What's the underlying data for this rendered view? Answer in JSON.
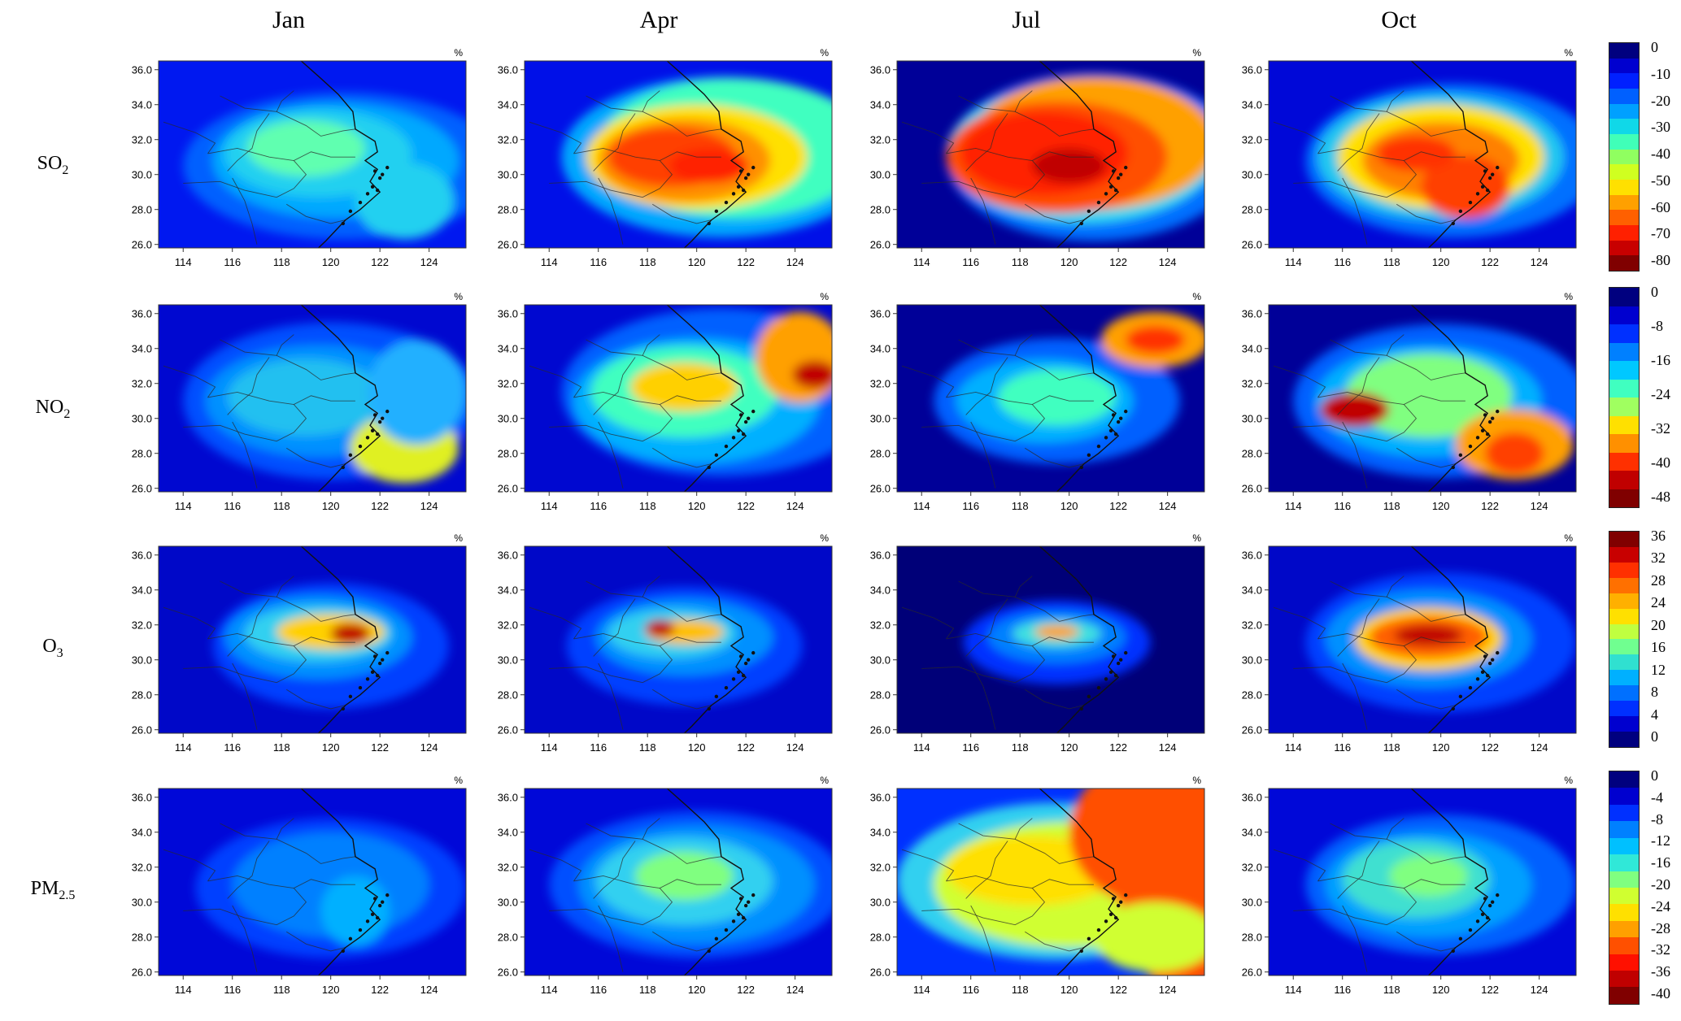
{
  "columns": [
    "Jan",
    "Apr",
    "Jul",
    "Oct"
  ],
  "rows": [
    {
      "name": "SO",
      "sub": "2"
    },
    {
      "name": "NO",
      "sub": "2"
    },
    {
      "name": "O",
      "sub": "3"
    },
    {
      "name": "PM",
      "sub": "2.5"
    }
  ],
  "unit": "%",
  "axes": {
    "x_ticks": [
      "114",
      "116",
      "118",
      "120",
      "122",
      "124"
    ],
    "y_ticks": [
      "36.0",
      "34.0",
      "32.0",
      "30.0",
      "28.0",
      "26.0"
    ],
    "x_range": [
      113,
      125.5
    ],
    "y_range": [
      25.8,
      36.5
    ]
  },
  "colorbars": [
    {
      "labels": [
        "0",
        "-10",
        "-20",
        "-30",
        "-40",
        "-50",
        "-60",
        "-70",
        "-80"
      ],
      "colors": [
        "#00007f",
        "#0000cf",
        "#0020ff",
        "#0060ff",
        "#00a0ff",
        "#10d8e8",
        "#40ffb8",
        "#90ff60",
        "#d0ff20",
        "#ffe000",
        "#ffa000",
        "#ff6000",
        "#ff2000",
        "#c80000",
        "#800000"
      ]
    },
    {
      "labels": [
        "0",
        "-8",
        "-16",
        "-24",
        "-32",
        "-40",
        "-48"
      ],
      "colors": [
        "#00007f",
        "#0000cf",
        "#0030ff",
        "#0080ff",
        "#00c8ff",
        "#40ffc0",
        "#a0ff60",
        "#ffe000",
        "#ff9000",
        "#ff3000",
        "#c00000",
        "#800000"
      ]
    },
    {
      "labels": [
        "36",
        "32",
        "28",
        "24",
        "20",
        "16",
        "12",
        "8",
        "4",
        "0"
      ],
      "colors": [
        "#800000",
        "#c80000",
        "#ff3000",
        "#ff7000",
        "#ffb000",
        "#ffe000",
        "#c0ff40",
        "#70ff90",
        "#30e0d0",
        "#00b0ff",
        "#0070ff",
        "#0030ff",
        "#0000cf",
        "#00007f"
      ]
    },
    {
      "labels": [
        "0",
        "-4",
        "-8",
        "-12",
        "-16",
        "-20",
        "-24",
        "-28",
        "-32",
        "-36",
        "-40"
      ],
      "colors": [
        "#00007f",
        "#0000cf",
        "#0030ff",
        "#0080ff",
        "#00c0ff",
        "#30e8d8",
        "#80ff80",
        "#d0ff30",
        "#ffe000",
        "#ffa000",
        "#ff5000",
        "#ff1000",
        "#c00000",
        "#800000"
      ]
    }
  ],
  "fields": [
    [
      {
        "bg": "#0018f0",
        "blobs": [
          [
            120.5,
            30.5,
            6.5,
            4.2,
            "#0060ff"
          ],
          [
            120.2,
            30.8,
            5,
            3.3,
            "#00a8ff"
          ],
          [
            119.5,
            31.2,
            3.8,
            2.5,
            "#20d0f0"
          ],
          [
            119,
            31.5,
            2.4,
            1.6,
            "#60ffb0"
          ],
          [
            123,
            28.5,
            2,
            2.2,
            "#20d0f0"
          ]
        ]
      },
      {
        "bg": "#0010e8",
        "blobs": [
          [
            121,
            31,
            6.5,
            4.6,
            "#00a8ff"
          ],
          [
            121.5,
            31.5,
            5.5,
            4,
            "#40ffc0"
          ],
          [
            120,
            31,
            4.5,
            3,
            "#ffe000"
          ],
          [
            119.5,
            30.8,
            3.5,
            2.4,
            "#ff9000"
          ],
          [
            119,
            31,
            2.6,
            1.7,
            "#ff4000"
          ],
          [
            120.5,
            30.5,
            1.6,
            1,
            "#ff2000"
          ]
        ]
      },
      {
        "bg": "#000098",
        "blobs": [
          [
            121,
            31,
            6,
            4.8,
            "#0070ff"
          ],
          [
            120.5,
            31.2,
            5.5,
            4,
            "#30d8f0"
          ],
          [
            121,
            31.8,
            5,
            3.8,
            "#ffa000"
          ],
          [
            119.5,
            31,
            4.5,
            3.2,
            "#ff5000"
          ],
          [
            119,
            31.2,
            3.4,
            2.4,
            "#ff2000"
          ],
          [
            120,
            30.5,
            1.5,
            1,
            "#c00000"
          ]
        ]
      },
      {
        "bg": "#0008d8",
        "blobs": [
          [
            120.5,
            30.8,
            6,
            4.4,
            "#0070ff"
          ],
          [
            120,
            31,
            5,
            3.6,
            "#20c8f0"
          ],
          [
            120,
            31,
            4.2,
            3,
            "#ffe000"
          ],
          [
            120,
            30.8,
            3.2,
            2.2,
            "#ff8000"
          ],
          [
            121,
            29.3,
            1.8,
            1.8,
            "#ff4000"
          ],
          [
            119,
            31.2,
            1.6,
            1,
            "#ff3000"
          ]
        ]
      }
    ],
    [
      {
        "bg": "#0008d0",
        "blobs": [
          [
            120,
            31,
            6,
            4.5,
            "#0050ff"
          ],
          [
            119.5,
            31,
            4.6,
            3.2,
            "#0090ff"
          ],
          [
            119,
            31.2,
            3.2,
            2.2,
            "#20c0f0"
          ],
          [
            123,
            28.3,
            2.2,
            2,
            "#e0f020"
          ],
          [
            123.5,
            31.5,
            2,
            3,
            "#20b0ff"
          ]
        ]
      },
      {
        "bg": "#0008d0",
        "blobs": [
          [
            121,
            31.5,
            6.5,
            4.8,
            "#0060ff"
          ],
          [
            120,
            31,
            5,
            3.6,
            "#00b0ff"
          ],
          [
            119.5,
            31.5,
            3.8,
            2.6,
            "#40ffc0"
          ],
          [
            119.5,
            31.8,
            2.2,
            1.4,
            "#ffd000"
          ],
          [
            124.2,
            33.5,
            1.8,
            2.6,
            "#ffa000"
          ],
          [
            124.8,
            32.5,
            0.9,
            0.8,
            "#c00000"
          ]
        ]
      },
      {
        "bg": "#000098",
        "blobs": [
          [
            119.5,
            31,
            5,
            3.6,
            "#0060ff"
          ],
          [
            119,
            31,
            3.6,
            2.4,
            "#00b0ff"
          ],
          [
            119.5,
            31.2,
            2.4,
            1.6,
            "#40ffc0"
          ],
          [
            123.5,
            34.5,
            2.2,
            1.6,
            "#ffa000"
          ],
          [
            123.5,
            34.5,
            1.2,
            0.8,
            "#ff3000"
          ]
        ]
      },
      {
        "bg": "#000098",
        "blobs": [
          [
            120,
            31,
            6,
            4.4,
            "#0060ff"
          ],
          [
            119.5,
            31,
            4.6,
            3.2,
            "#00b0ff"
          ],
          [
            119.5,
            31.3,
            3.4,
            2.4,
            "#80ff80"
          ],
          [
            116.5,
            30.5,
            1.4,
            1,
            "#c00000"
          ],
          [
            123,
            28.5,
            2.4,
            2,
            "#ffa000"
          ],
          [
            123,
            28,
            1.2,
            1.2,
            "#ff4000"
          ]
        ]
      }
    ],
    [
      {
        "bg": "#0008c8",
        "blobs": [
          [
            120,
            30.8,
            4.8,
            3.6,
            "#0040ff"
          ],
          [
            119.5,
            31.3,
            3.8,
            2.4,
            "#0090ff"
          ],
          [
            119.5,
            31.5,
            3,
            1.6,
            "#30d0f0"
          ],
          [
            120,
            31.6,
            2.2,
            1,
            "#ffd000"
          ],
          [
            120.8,
            31.5,
            0.8,
            0.6,
            "#c00000"
          ]
        ]
      },
      {
        "bg": "#0008c8",
        "blobs": [
          [
            119.5,
            30.8,
            4.8,
            3.4,
            "#0040ff"
          ],
          [
            119.5,
            31.3,
            3.6,
            2.2,
            "#0090ff"
          ],
          [
            119,
            31.5,
            2.6,
            1.4,
            "#30d0f0"
          ],
          [
            119.5,
            31.6,
            1.6,
            0.7,
            "#ffc000"
          ],
          [
            118.5,
            31.8,
            0.6,
            0.5,
            "#c00000"
          ]
        ]
      },
      {
        "bg": "#000078",
        "blobs": [
          [
            119.5,
            31,
            3.8,
            2.4,
            "#0030ff"
          ],
          [
            119.5,
            31.3,
            2.8,
            1.5,
            "#0080ff"
          ],
          [
            119.5,
            31.5,
            1.8,
            0.8,
            "#40e0e0"
          ],
          [
            119.5,
            31.6,
            0.9,
            0.4,
            "#ffa000"
          ]
        ]
      },
      {
        "bg": "#0008c8",
        "blobs": [
          [
            120,
            31,
            5.5,
            4,
            "#0040ff"
          ],
          [
            119.5,
            31.2,
            4.2,
            2.8,
            "#0090ff"
          ],
          [
            119.5,
            31.2,
            3,
            1.8,
            "#ffd000"
          ],
          [
            119.5,
            31.3,
            2.4,
            1.2,
            "#ff6000"
          ],
          [
            119.5,
            31.4,
            1.4,
            0.6,
            "#c00000"
          ]
        ]
      }
    ],
    [
      {
        "bg": "#0008d8",
        "blobs": [
          [
            120,
            30.8,
            5.5,
            4,
            "#0040ff"
          ],
          [
            120,
            31,
            4,
            3,
            "#0080ff"
          ],
          [
            121,
            29.5,
            1.4,
            2,
            "#00b0ff"
          ]
        ]
      },
      {
        "bg": "#0008d8",
        "blobs": [
          [
            120,
            31,
            6,
            4.2,
            "#0050ff"
          ],
          [
            120,
            31,
            4.8,
            3.4,
            "#0090ff"
          ],
          [
            119.5,
            31.2,
            3.6,
            2.5,
            "#30d0f0"
          ],
          [
            119.5,
            31.5,
            2,
            1.4,
            "#80ff80"
          ]
        ]
      },
      {
        "bg": "#0030ff",
        "blobs": [
          [
            119.5,
            31.2,
            6.5,
            4.5,
            "#30d0f0"
          ],
          [
            120,
            31,
            5.5,
            3.6,
            "#d0ff30"
          ],
          [
            118.5,
            31.8,
            3.5,
            2,
            "#ffe000"
          ],
          [
            124,
            34,
            4,
            4.5,
            "#ff5000"
          ],
          [
            124.5,
            31,
            2.5,
            6,
            "#ff5000"
          ],
          [
            123.5,
            28,
            2.5,
            2,
            "#d0ff30"
          ]
        ]
      },
      {
        "bg": "#0008d8",
        "blobs": [
          [
            120,
            31,
            5.5,
            4,
            "#0060ff"
          ],
          [
            119.5,
            31,
            4.2,
            3,
            "#00a0ff"
          ],
          [
            119,
            31.3,
            3,
            2.2,
            "#40e0d0"
          ],
          [
            119.5,
            31.5,
            1.6,
            1.2,
            "#80ff80"
          ]
        ]
      }
    ]
  ]
}
